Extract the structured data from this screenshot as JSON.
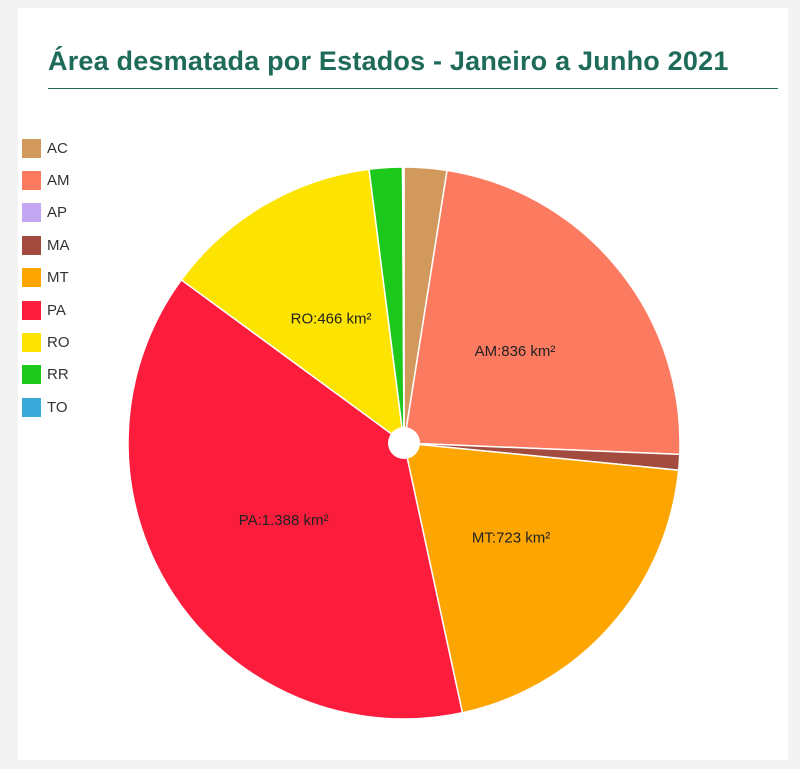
{
  "chart_data": {
    "type": "pie",
    "title": "Área desmatada por Estados - Janeiro a Junho 2021",
    "donut_hole": true,
    "legend_position": "left",
    "slices": [
      {
        "name": "AC",
        "value": 90,
        "color": "#d19a5c",
        "label": ""
      },
      {
        "name": "AM",
        "value": 836,
        "color": "#fc7a5f",
        "label": "AM:836 km²"
      },
      {
        "name": "AP",
        "value": 0,
        "color": "#c3a7f2",
        "label": ""
      },
      {
        "name": "MA",
        "value": 33,
        "color": "#a24b3e",
        "label": ""
      },
      {
        "name": "MT",
        "value": 723,
        "color": "#fda500",
        "label": "MT:723 km²"
      },
      {
        "name": "PA",
        "value": 1388,
        "color": "#fc1c3b",
        "label": "PA:1.388 km²"
      },
      {
        "name": "RO",
        "value": 466,
        "color": "#fde300",
        "label": "RO:466 km²"
      },
      {
        "name": "RR",
        "value": 70,
        "color": "#1cc81c",
        "label": ""
      },
      {
        "name": "TO",
        "value": 3,
        "color": "#3aa8d8",
        "label": ""
      }
    ]
  }
}
